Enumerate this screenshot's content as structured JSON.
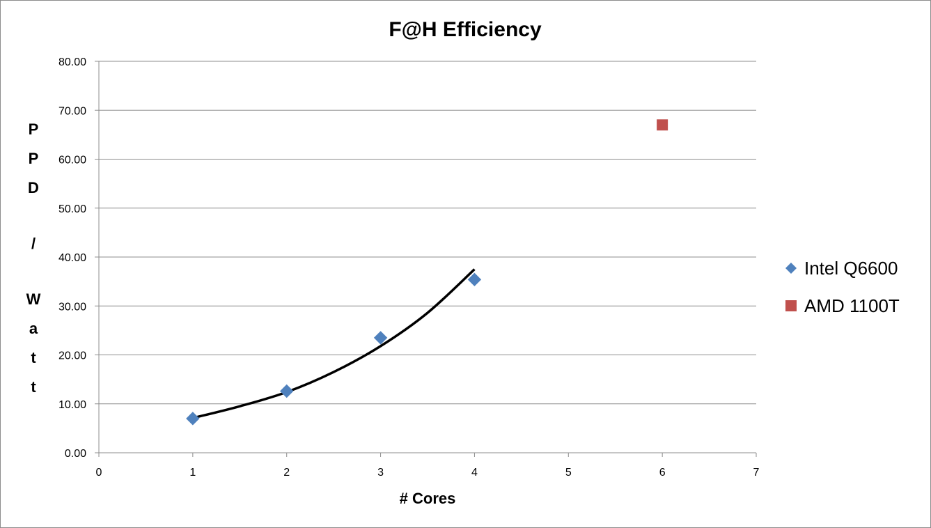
{
  "chart_data": {
    "type": "scatter",
    "title": "F@H Efficiency",
    "xlabel": "# Cores",
    "ylabel": "PPD / Watt",
    "xlim": [
      0,
      7
    ],
    "ylim": [
      0,
      80
    ],
    "x_ticks": [
      "0",
      "1",
      "2",
      "3",
      "4",
      "5",
      "6",
      "7"
    ],
    "y_ticks": [
      "0.00",
      "10.00",
      "20.00",
      "30.00",
      "40.00",
      "50.00",
      "60.00",
      "70.00",
      "80.00"
    ],
    "grid": true,
    "legend_position": "right",
    "series": [
      {
        "name": "Intel Q6600",
        "marker": "diamond",
        "color": "#4f81bd",
        "x": [
          1,
          2,
          3,
          4
        ],
        "y": [
          7.0,
          12.6,
          23.5,
          35.4
        ],
        "trendline": {
          "type": "exponential",
          "color": "#000000",
          "x_range": [
            1,
            4
          ],
          "points": [
            [
              1,
              7.1
            ],
            [
              1.5,
              9.5
            ],
            [
              2,
              12.4
            ],
            [
              2.5,
              16.5
            ],
            [
              3,
              21.8
            ],
            [
              3.5,
              28.6
            ],
            [
              4,
              37.5
            ]
          ]
        }
      },
      {
        "name": "AMD 1100T",
        "marker": "square",
        "color": "#c0504d",
        "x": [
          6
        ],
        "y": [
          67.0
        ]
      }
    ]
  }
}
